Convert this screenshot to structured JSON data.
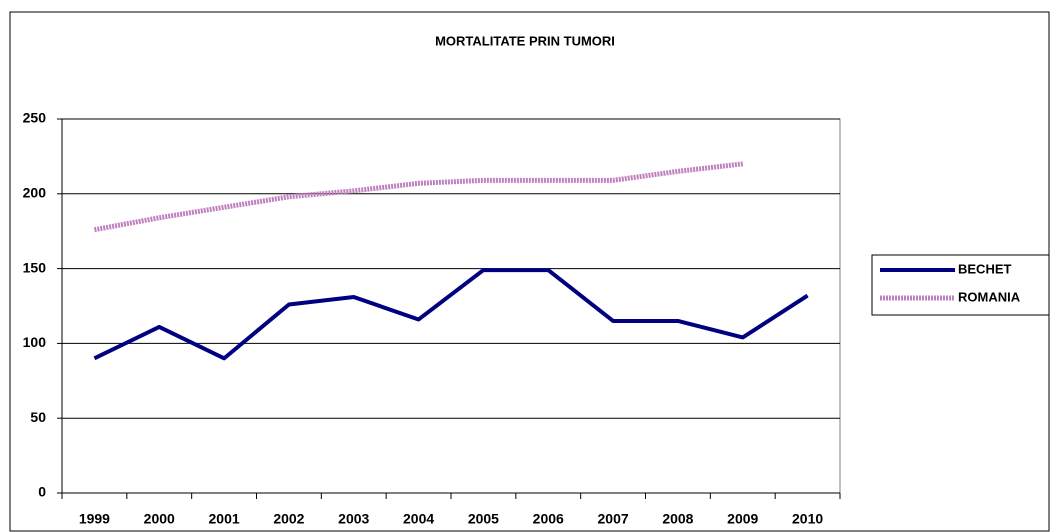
{
  "chart_data": {
    "type": "line",
    "title": "MORTALITATE PRIN TUMORI",
    "categories": [
      "1999",
      "2000",
      "2001",
      "2002",
      "2003",
      "2004",
      "2005",
      "2006",
      "2007",
      "2008",
      "2009",
      "2010"
    ],
    "series": [
      {
        "name": "BECHET",
        "color": "#000080",
        "values": [
          90,
          111,
          90,
          126,
          131,
          116,
          149,
          149,
          115,
          115,
          104,
          132
        ]
      },
      {
        "name": "ROMANIA",
        "color": "#c080c0",
        "values": [
          176,
          184,
          191,
          198,
          202,
          207,
          209,
          209,
          209,
          215,
          220,
          null
        ]
      }
    ],
    "ylim": [
      0,
      250
    ],
    "yticks": [
      0,
      50,
      100,
      150,
      200,
      250
    ],
    "grid": true,
    "legend": "right"
  }
}
